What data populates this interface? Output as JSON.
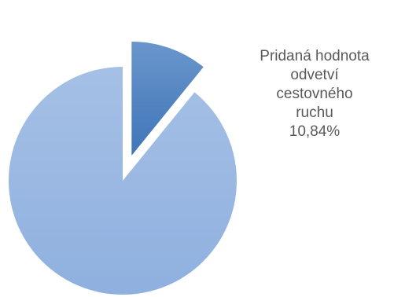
{
  "chart_data": {
    "type": "pie",
    "title": "",
    "slices": [
      {
        "label": "",
        "value": 89.16,
        "color": "#9dbbe3",
        "exploded": false
      },
      {
        "label": "Pridaná hodnota odvetví cestovného ruchu",
        "label_lines": [
          "Pridaná hodnota",
          "odvetví",
          "cestovného",
          "ruchu"
        ],
        "value": 10.84,
        "value_label": "10,84%",
        "color": "#4f81bd",
        "exploded": true
      }
    ],
    "legend": "none"
  }
}
